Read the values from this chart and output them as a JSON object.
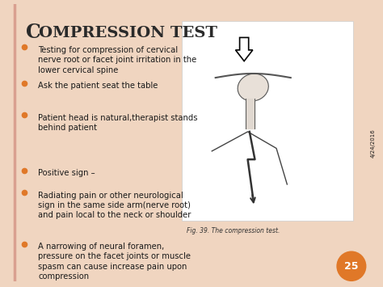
{
  "bg_color": "#f0d5c0",
  "slide_bg": "#ffffff",
  "title_C": "C",
  "title_rest": "OMPRESSION TEST",
  "title_color": "#2a2a2a",
  "bullet_color": "#e07828",
  "text_color": "#1a1a1a",
  "bullet_items_1": [
    "Testing for compression of cervical\nnerve root or facet joint irritation in the\nlower cervical spine",
    "Ask the patient seat the table",
    "Patient head is natural,therapist stands\nbehind patient"
  ],
  "bullet_items_2": [
    "Positive sign –",
    "Radiating pain or other neurological\nsign in the same side arm(nerve root)\nand pain local to the neck or shoulder",
    "A narrowing of neural foramen,\npressure on the facet joints or muscle\nspasm can cause increase pain upon\ncompression"
  ],
  "side_text": "4/24/2016",
  "page_number": "25",
  "page_num_color": "#e07828",
  "fig_caption": "Fig. 39. The compression test.",
  "left_border_color": "#d9a090",
  "title_font_size": 14,
  "bullet_font_size": 7.2
}
